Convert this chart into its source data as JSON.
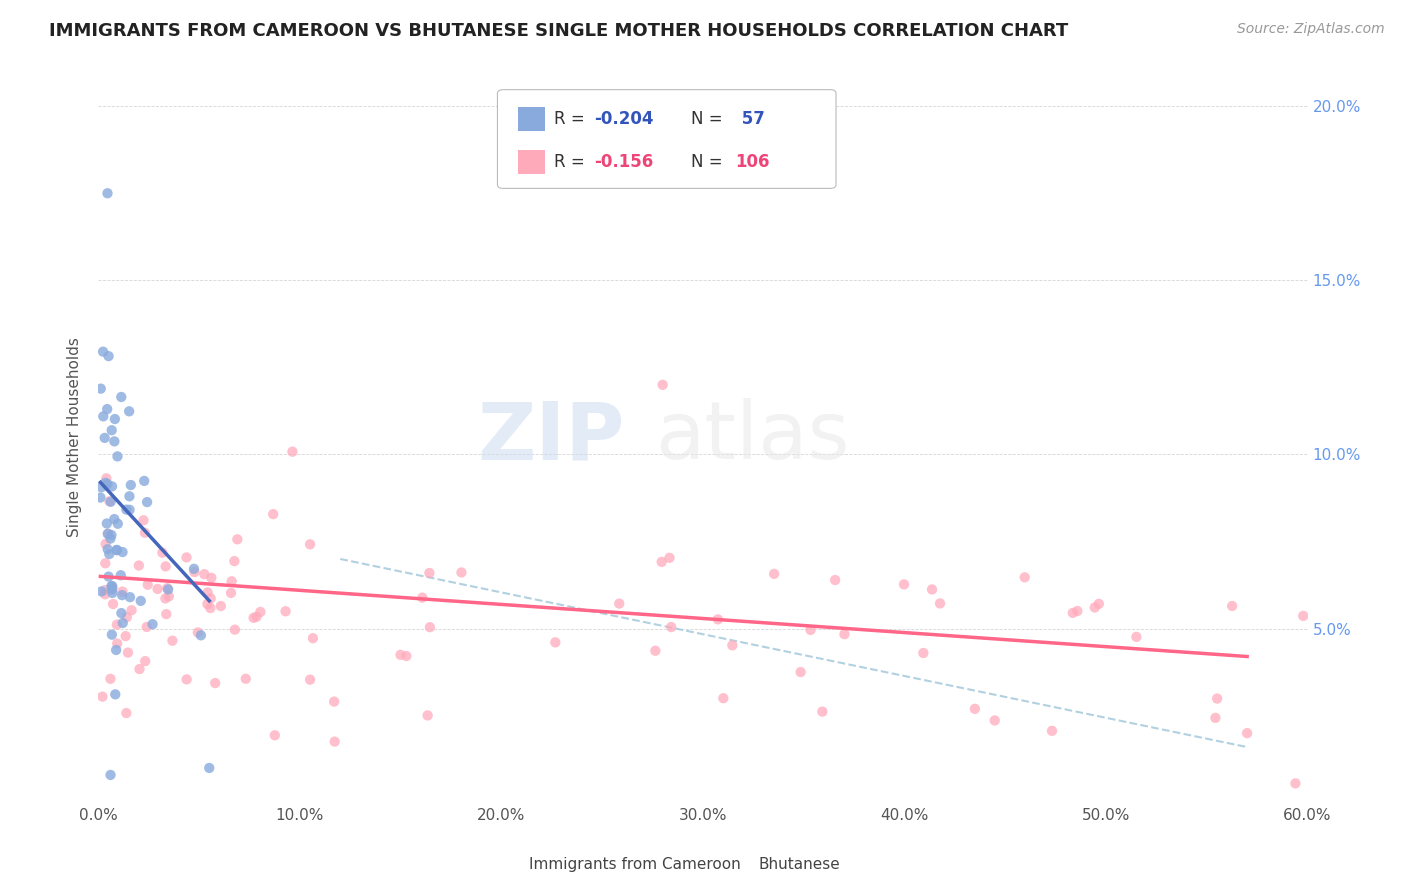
{
  "title": "IMMIGRANTS FROM CAMEROON VS BHUTANESE SINGLE MOTHER HOUSEHOLDS CORRELATION CHART",
  "source": "Source: ZipAtlas.com",
  "ylabel": "Single Mother Households",
  "xlim": [
    0.0,
    0.6
  ],
  "ylim": [
    0.0,
    0.21
  ],
  "xticks": [
    0.0,
    0.1,
    0.2,
    0.3,
    0.4,
    0.5,
    0.6
  ],
  "xticklabels": [
    "0.0%",
    "10.0%",
    "20.0%",
    "30.0%",
    "40.0%",
    "50.0%",
    "60.0%"
  ],
  "yticks_right": [
    0.05,
    0.1,
    0.15,
    0.2
  ],
  "yticklabels_right": [
    "5.0%",
    "10.0%",
    "15.0%",
    "20.0%"
  ],
  "blue_color": "#88AADD",
  "pink_color": "#FFAABB",
  "blue_line_color": "#4466BB",
  "pink_line_color": "#FF6688",
  "dashed_line_color": "#AACCDD",
  "legend_label1": "Immigrants from Cameroon",
  "legend_label2": "Bhutanese",
  "watermark_zip": "ZIP",
  "watermark_atlas": "atlas",
  "title_fontsize": 13,
  "source_fontsize": 10,
  "tick_fontsize": 11,
  "legend_fontsize": 12
}
